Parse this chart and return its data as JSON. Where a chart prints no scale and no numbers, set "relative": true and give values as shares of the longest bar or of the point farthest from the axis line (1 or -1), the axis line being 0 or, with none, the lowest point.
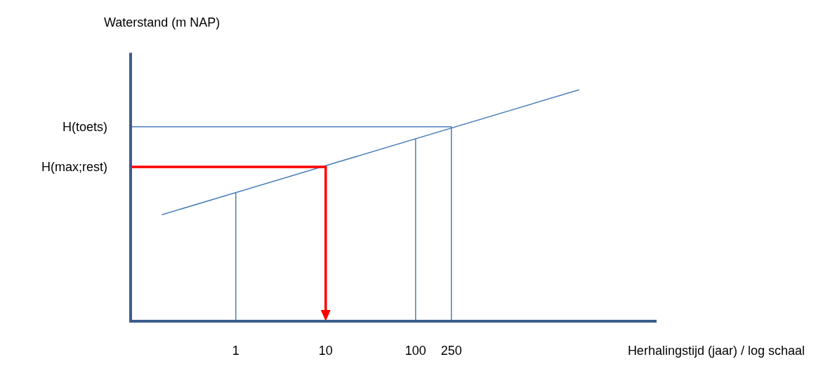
{
  "chart_data": {
    "type": "line",
    "ylabel": "Waterstand (m NAP)",
    "xlabel": "Herhalingstijd (jaar) / log schaal",
    "log": "x",
    "relative": true,
    "grid": false,
    "marker": "none",
    "line_style": "solid",
    "xlim": [
      0.07,
      48000
    ],
    "xticks": [
      1,
      10,
      100,
      250
    ],
    "series": [
      {
        "color": "#4a7ebb",
        "x": [
          0.15,
          6600
        ],
        "values": [
          0.46,
          1
        ]
      },
      {
        "color": "#4a7ebb",
        "x": [
          1,
          1
        ],
        "values": [
          0,
          0.555
        ]
      },
      {
        "color": "#4a7ebb",
        "x": [
          100,
          100
        ],
        "values": [
          0,
          0.788
        ]
      },
      {
        "color": "#4a7ebb",
        "x": [
          0.07,
          250,
          250
        ],
        "values": [
          0.84,
          0.84,
          0
        ]
      }
    ],
    "annotations": [
      {
        "text": "H(toets)",
        "x": 0.07,
        "y": 0.84
      },
      {
        "text": "H(max;rest)",
        "x": 0.07,
        "y": 0.667
      }
    ],
    "ref_lines": [
      {
        "axis": "x",
        "value": 10,
        "color": "#ff0000"
      }
    ]
  }
}
